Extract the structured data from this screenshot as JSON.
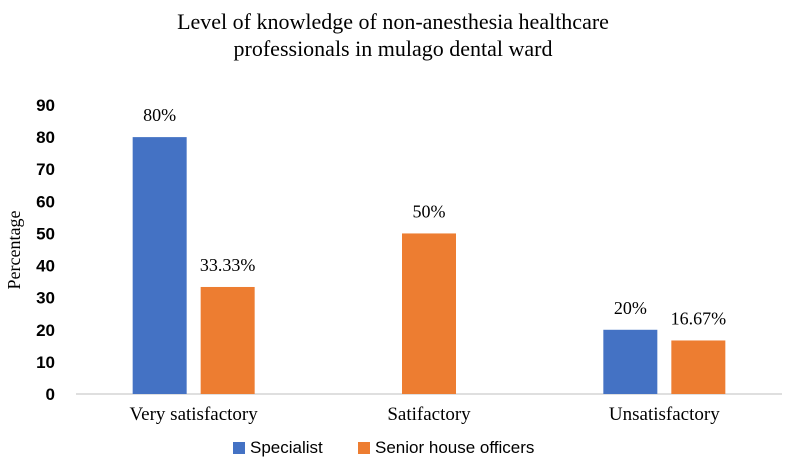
{
  "chart_data": {
    "type": "bar",
    "title_lines": [
      "Level of knowledge of non-anesthesia  healthcare",
      "professionals in mulago dental ward"
    ],
    "xlabel": "",
    "ylabel": "Percentage",
    "ylim": [
      0,
      90
    ],
    "yticks": [
      0,
      10,
      20,
      30,
      40,
      50,
      60,
      70,
      80,
      90
    ],
    "categories": [
      "Very satisfactory",
      "Satifactory",
      "Unsatisfactory"
    ],
    "series": [
      {
        "name": "Specialist",
        "color": "#4472c4",
        "values": [
          80,
          null,
          20
        ],
        "labels": [
          "80%",
          "",
          "20%"
        ]
      },
      {
        "name": "Senior house officers",
        "color": "#ed7d31",
        "values": [
          33.33,
          50,
          16.67
        ],
        "labels": [
          "33.33%",
          "50%",
          "16.67%"
        ]
      }
    ],
    "grid": false,
    "legend_position": "bottom"
  }
}
